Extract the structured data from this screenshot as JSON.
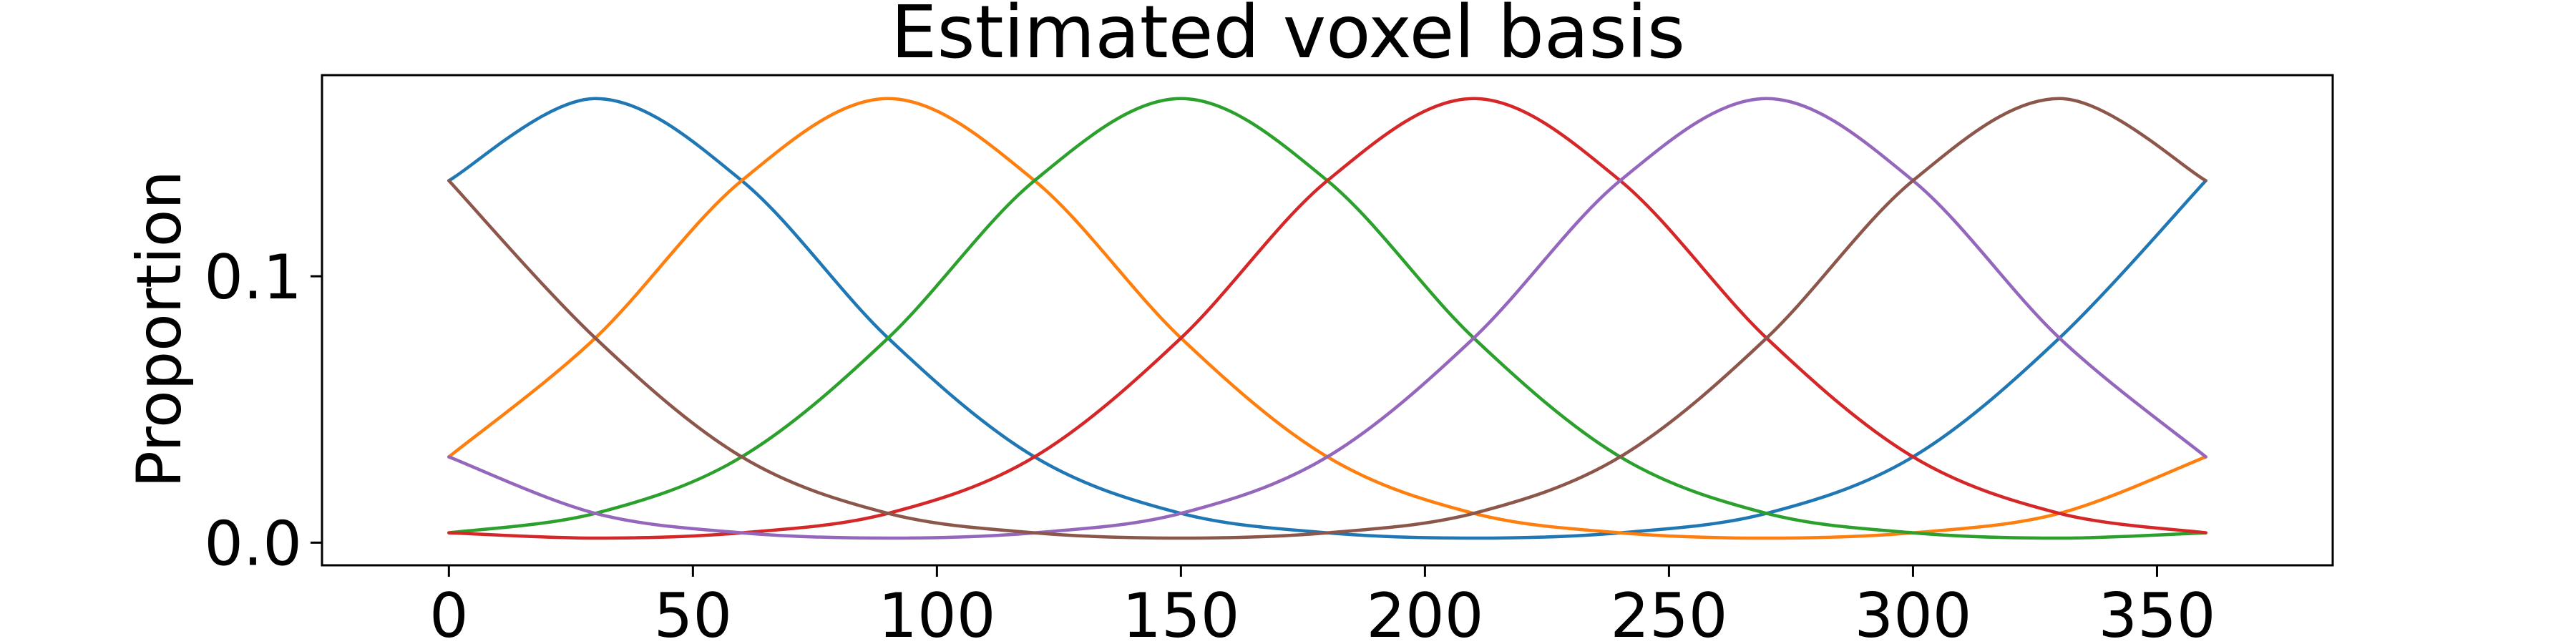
{
  "chart_data": {
    "type": "line",
    "title": "Estimated voxel basis",
    "xlabel": "",
    "ylabel": "Proportion",
    "xlim": [
      -26,
      386
    ],
    "ylim": [
      -0.0085,
      0.1755
    ],
    "x_ticks": [
      0,
      50,
      100,
      150,
      200,
      250,
      300,
      350
    ],
    "x_tick_labels": [
      "0",
      "50",
      "100",
      "150",
      "200",
      "250",
      "300",
      "350"
    ],
    "y_ticks": [
      0.0,
      0.1
    ],
    "y_tick_labels": [
      "0.0",
      "0.1"
    ],
    "grid": false,
    "legend": "none",
    "x": [
      0,
      30,
      60,
      90,
      120,
      150,
      180,
      210,
      240,
      270,
      300,
      330,
      360
    ],
    "series": [
      {
        "color": "#1f77b4",
        "values": [
          0.1359,
          0.1667,
          0.1359,
          0.0768,
          0.0322,
          0.011,
          0.0037,
          0.0017,
          0.0037,
          0.011,
          0.0322,
          0.0768,
          0.1359
        ]
      },
      {
        "color": "#ff7f0e",
        "values": [
          0.0322,
          0.0768,
          0.1359,
          0.1667,
          0.1359,
          0.0768,
          0.0322,
          0.011,
          0.0037,
          0.0017,
          0.0037,
          0.011,
          0.0322
        ]
      },
      {
        "color": "#2ca02c",
        "values": [
          0.0037,
          0.011,
          0.0322,
          0.0768,
          0.1359,
          0.1667,
          0.1359,
          0.0768,
          0.0322,
          0.011,
          0.0037,
          0.0017,
          0.0037
        ]
      },
      {
        "color": "#d62728",
        "values": [
          0.0037,
          0.0017,
          0.0037,
          0.011,
          0.0322,
          0.0768,
          0.1359,
          0.1667,
          0.1359,
          0.0768,
          0.0322,
          0.011,
          0.0037
        ]
      },
      {
        "color": "#9467bd",
        "values": [
          0.0322,
          0.011,
          0.0037,
          0.0017,
          0.0037,
          0.011,
          0.0322,
          0.0768,
          0.1359,
          0.1667,
          0.1359,
          0.0768,
          0.0322
        ]
      },
      {
        "color": "#8c564b",
        "values": [
          0.1359,
          0.0768,
          0.0322,
          0.011,
          0.0037,
          0.0017,
          0.0037,
          0.011,
          0.0322,
          0.0768,
          0.1359,
          0.1667,
          0.1359
        ]
      }
    ]
  }
}
